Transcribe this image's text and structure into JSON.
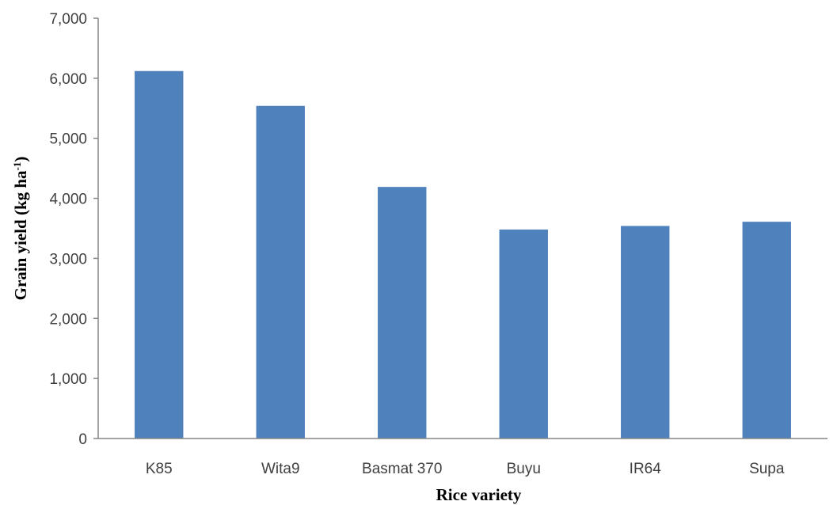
{
  "chart_data": {
    "type": "bar",
    "title": "",
    "xlabel": "Rice variety",
    "ylabel": "Grain yield  (kg ha",
    "ylabel_superscript": "-1",
    "ylabel_suffix": ")",
    "categories": [
      "K85",
      "Wita9",
      "Basmat 370",
      "Buyu",
      "IR64",
      "Supa"
    ],
    "values": [
      6120,
      5540,
      4190,
      3480,
      3540,
      3610
    ],
    "ylim": [
      0,
      7000
    ],
    "yticks": [
      0,
      1000,
      2000,
      3000,
      4000,
      5000,
      6000,
      7000
    ],
    "ytick_labels": [
      "0",
      "1,000",
      "2,000",
      "3,000",
      "4,000",
      "5,000",
      "6,000",
      "7,000"
    ],
    "grid": false,
    "legend": "none",
    "bar_color": "#4f81bd"
  }
}
